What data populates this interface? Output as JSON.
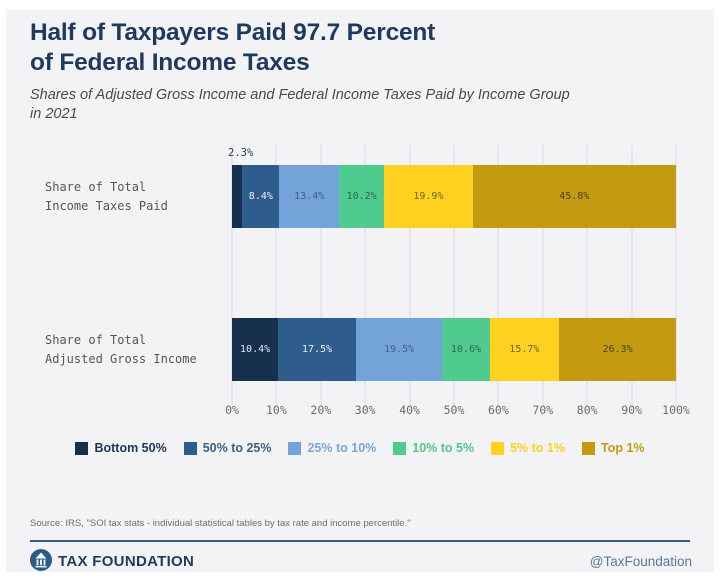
{
  "header": {
    "title_line1": "Half of Taxpayers Paid 97.7 Percent",
    "title_line2": "of Federal Income Taxes",
    "subtitle_line1": "Shares of Adjusted Gross Income and Federal Income Taxes Paid by Income Group",
    "subtitle_line2": "in 2021"
  },
  "chart_data": {
    "type": "bar",
    "variant": "horizontal-stacked",
    "unit": "%",
    "categories": [
      "Share of Total Income Taxes Paid",
      "Share of Total Adjusted Gross Income"
    ],
    "category_labels": [
      [
        "Share of Total",
        "Income Taxes Paid"
      ],
      [
        "Share of Total",
        "Adjusted Gross Income"
      ]
    ],
    "series": [
      {
        "name": "Bottom 50%",
        "color": "#17304e",
        "legend_text_color": "#20375a",
        "value_label_color": "#dfe8f1",
        "values": [
          2.3,
          10.4
        ]
      },
      {
        "name": "50% to 25%",
        "color": "#2d5c8d",
        "legend_text_color": "#3d5f83",
        "value_label_color": "#eaf0f6",
        "values": [
          8.4,
          17.5
        ]
      },
      {
        "name": "25% to 10%",
        "color": "#74a3d9",
        "legend_text_color": "#7aa6d9",
        "value_label_color": "#42608a",
        "values": [
          13.4,
          19.5
        ]
      },
      {
        "name": "10% to 5%",
        "color": "#4fcb8d",
        "legend_text_color": "#50c78b",
        "value_label_color": "#2e6253",
        "values": [
          10.2,
          10.6
        ]
      },
      {
        "name": "5% to 1%",
        "color": "#ffd21f",
        "legend_text_color": "#fcd021",
        "value_label_color": "#6d6136",
        "values": [
          19.9,
          15.7
        ]
      },
      {
        "name": "Top 1%",
        "color": "#c49a11",
        "legend_text_color": "#c49a12",
        "value_label_color": "#4a431c",
        "values": [
          45.8,
          26.3
        ]
      }
    ],
    "x_ticks": [
      "0%",
      "10%",
      "20%",
      "30%",
      "40%",
      "50%",
      "60%",
      "70%",
      "80%",
      "90%",
      "100%"
    ],
    "xlim": [
      0,
      100
    ],
    "outside_label": "2.3%",
    "legend_position": "bottom",
    "grid": "vertical"
  },
  "footer": {
    "source": "Source: IRS, \"SOI tax stats - individual statistical tables by tax rate and income percentile.\"",
    "brand": "TAX FOUNDATION",
    "handle": "@TaxFoundation"
  }
}
